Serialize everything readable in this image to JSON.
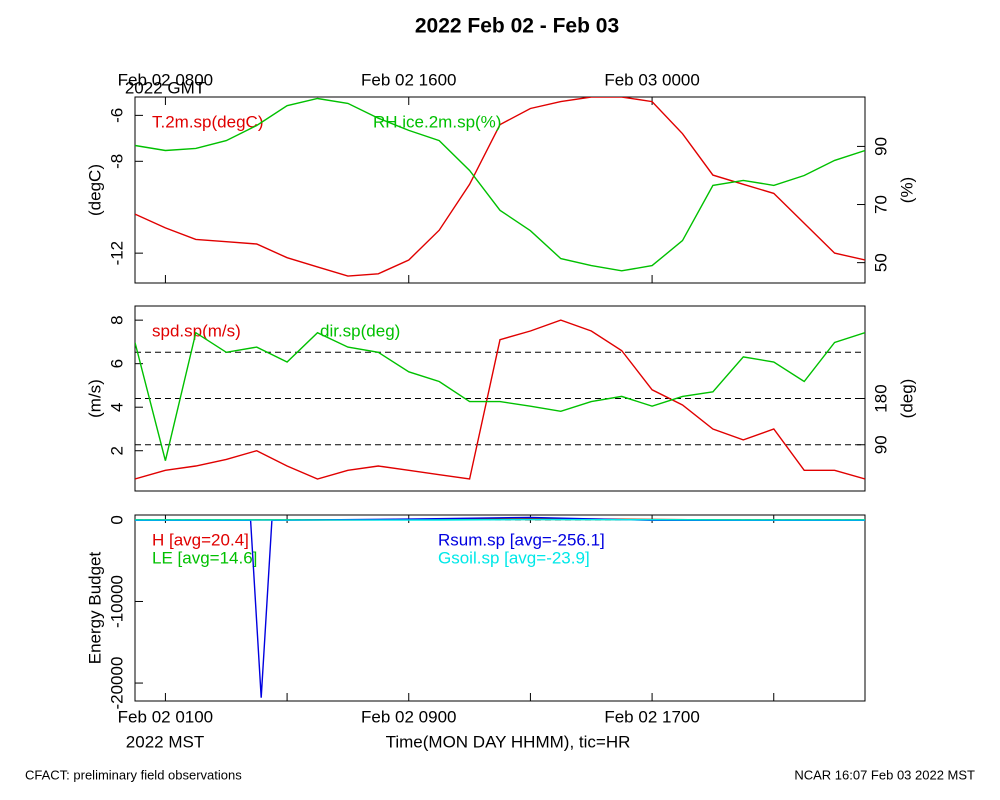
{
  "title": "2022 Feb 02 - Feb 03",
  "footer_left": "CFACT: preliminary field observations",
  "footer_right": "NCAR 16:07 Feb 03 2022 MST",
  "chart_data": [
    {
      "type": "line",
      "ylabel": "(degC)",
      "y2label": "(%)",
      "xlim": [
        0,
        24
      ],
      "x2ticks": [
        {
          "value": 1,
          "label": "Feb 02 0800"
        },
        {
          "value": 9,
          "label": "Feb 02 1600"
        },
        {
          "value": 17,
          "label": "Feb 03 0000"
        }
      ],
      "x2note": "2022 GMT",
      "ylim": [
        -13.3,
        -5.2
      ],
      "yticks": [
        -6,
        -8,
        -12
      ],
      "y2lim": [
        43,
        107
      ],
      "y2ticks": [
        90,
        70,
        50
      ],
      "x": [
        0,
        1,
        2,
        3,
        4,
        5,
        6,
        7,
        8,
        9,
        10,
        11,
        12,
        13,
        14,
        15,
        16,
        17,
        18,
        19,
        20,
        21,
        22,
        23,
        24
      ],
      "series": [
        {
          "name": "T.2m.sp(degC)",
          "color": "#e00000",
          "values": [
            -10.3,
            -10.9,
            -11.4,
            -11.5,
            -11.6,
            -12.2,
            -12.6,
            -13.0,
            -12.9,
            -12.3,
            -11.0,
            -9.0,
            -6.4,
            -5.7,
            -5.4,
            -5.2,
            -5.2,
            -5.4,
            -6.8,
            -8.6,
            -9.0,
            -9.4,
            -10.7,
            -12.0,
            -12.3
          ]
        },
        {
          "name": "RH.ice.2m.sp(%)",
          "color": "#00c000",
          "axis": "y2",
          "values": [
            90.3,
            88.6,
            89.3,
            92,
            97.2,
            104,
            106.5,
            104.8,
            99.7,
            95.5,
            92,
            81.7,
            68,
            61,
            51.4,
            49,
            47.2,
            49,
            57.6,
            76.6,
            78.3,
            76.6,
            80,
            85.2,
            88.6
          ]
        }
      ]
    },
    {
      "type": "line",
      "ylabel": "(m/s)",
      "y2label": "(deg)",
      "xlim": [
        0,
        24
      ],
      "ylim": [
        0.15,
        8.65
      ],
      "yticks": [
        8,
        6,
        4,
        2
      ],
      "y2lim": [
        0,
        360
      ],
      "y2ticks": [
        180,
        90
      ],
      "hlines": [
        90,
        180,
        270
      ],
      "x": [
        0,
        1,
        2,
        3,
        4,
        5,
        6,
        7,
        8,
        9,
        10,
        11,
        12,
        13,
        14,
        15,
        16,
        17,
        18,
        19,
        20,
        21,
        22,
        23,
        24
      ],
      "series": [
        {
          "name": "spd.sp(m/s)",
          "color": "#e00000",
          "values": [
            0.7,
            1.1,
            1.3,
            1.6,
            2.0,
            1.3,
            0.7,
            1.1,
            1.3,
            1.1,
            0.9,
            0.7,
            7.1,
            7.5,
            8.0,
            7.5,
            6.6,
            4.8,
            4.1,
            3.0,
            2.5,
            3.0,
            1.1,
            1.1,
            0.7
          ]
        },
        {
          "name": "dir.sp(deg)",
          "color": "#00c000",
          "axis": "y2",
          "values": [
            289,
            59,
            308,
            270,
            280,
            251,
            308,
            280,
            270,
            232,
            213,
            174,
            174,
            165,
            155,
            174,
            184,
            165,
            184,
            193,
            261,
            251,
            213,
            289,
            308
          ]
        }
      ]
    },
    {
      "type": "line",
      "ylabel": "Energy Budget",
      "xlabel": "Time(MON DAY HHMM), tic=HR",
      "xlim": [
        0,
        24
      ],
      "xticks": [
        {
          "value": 1,
          "label": "Feb 02 0100"
        },
        {
          "value": 9,
          "label": "Feb 02 0900"
        },
        {
          "value": 17,
          "label": "Feb 02 1700"
        }
      ],
      "xminor": [
        5,
        13,
        21
      ],
      "xnote": "2022 MST",
      "ylim": [
        -22200,
        600
      ],
      "yticks": [
        0,
        -10000,
        -20000
      ],
      "hlines": [
        0
      ],
      "series": [
        {
          "name": "H [avg=20.4]",
          "color": "#e00000",
          "x": [
            0,
            6,
            10,
            13,
            16,
            20,
            24
          ],
          "values": [
            -30,
            -20,
            50,
            150,
            80,
            -20,
            -30
          ]
        },
        {
          "name": "LE [avg=14.6]",
          "color": "#00c000",
          "x": [
            0,
            6,
            10,
            13,
            16,
            20,
            24
          ],
          "values": [
            10,
            10,
            30,
            60,
            40,
            10,
            10
          ]
        },
        {
          "name": "Rsum.sp [avg=-256.1]",
          "color": "#0000e0",
          "x": [
            0,
            3.8,
            4.15,
            4.5,
            9,
            13,
            17,
            24
          ],
          "values": [
            -50,
            -50,
            -21800,
            -50,
            100,
            300,
            -50,
            -50
          ]
        },
        {
          "name": "Gsoil.sp [avg=-23.9]",
          "color": "#00e8e8",
          "x": [
            0,
            6,
            10,
            13,
            16,
            20,
            24
          ],
          "values": [
            -20,
            -30,
            -10,
            40,
            20,
            -20,
            -20
          ]
        }
      ]
    }
  ]
}
